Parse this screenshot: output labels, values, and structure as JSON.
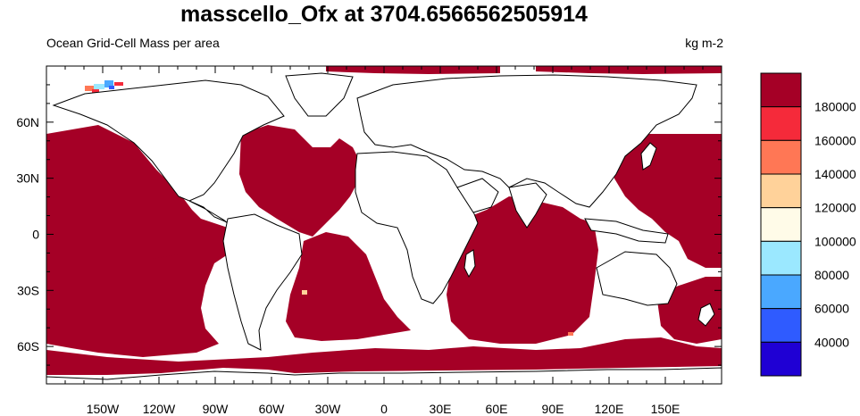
{
  "chart_data": {
    "type": "heatmap",
    "title": "masscello_Ofx at 3704.6566562505914",
    "subtitle_left": "Ocean Grid-Cell Mass per area",
    "units": "kg m-2",
    "x_tick_labels": [
      "150W",
      "120W",
      "90W",
      "60W",
      "30W",
      "0",
      "30E",
      "60E",
      "90E",
      "120E",
      "150E"
    ],
    "x_tick_values": [
      -150,
      -120,
      -90,
      -60,
      -30,
      0,
      30,
      60,
      90,
      120,
      150
    ],
    "y_tick_labels": [
      "60N",
      "30N",
      "0",
      "30S",
      "60S"
    ],
    "y_tick_values": [
      60,
      30,
      0,
      -30,
      -60
    ],
    "xlim": [
      -180,
      180
    ],
    "ylim": [
      -80,
      90
    ],
    "dominant_value_class": "> 180000",
    "colorbar": {
      "levels": [
        "180000",
        "160000",
        "140000",
        "120000",
        "100000",
        "80000",
        "60000",
        "40000"
      ],
      "colors": [
        "#a50026",
        "#f52a3a",
        "#ff7755",
        "#ffd29a",
        "#fffbe8",
        "#9be8ff",
        "#4aa8ff",
        "#2f5bff",
        "#1f00d4"
      ]
    }
  }
}
